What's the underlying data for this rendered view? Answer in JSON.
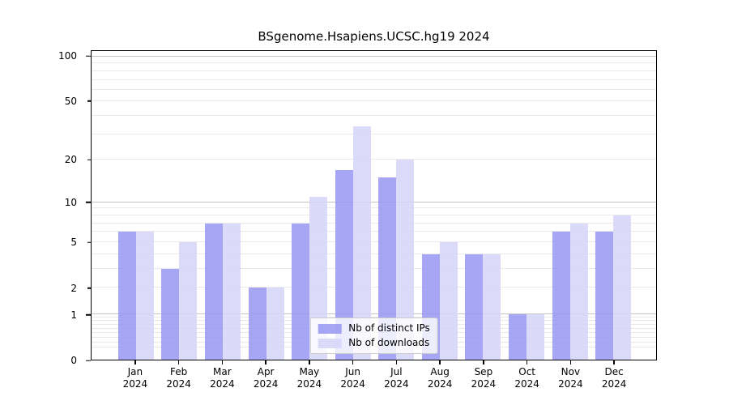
{
  "title": "BSgenome.Hsapiens.UCSC.hg19 2024",
  "colors": {
    "ips_bar": "rgba(150,150,243,0.85)",
    "downloads_bar": "rgba(214,214,248,0.88)",
    "grid_major": "#c4c4c4",
    "grid_minor": "#e9e9e9",
    "axis": "#000000",
    "legend_border": "#cccccc"
  },
  "legend": {
    "items": [
      {
        "label": "Nb of distinct IPs",
        "series": "ips"
      },
      {
        "label": "Nb of downloads",
        "series": "downloads"
      }
    ]
  },
  "y_axis": {
    "tick_values": [
      0,
      1,
      2,
      5,
      10,
      20,
      50,
      100
    ],
    "tick_labels": [
      "0",
      "1",
      "2",
      "5",
      "10",
      "20",
      "50",
      "100"
    ],
    "major_values": [
      0,
      1,
      10,
      100
    ],
    "minor_grid_values": [
      0.2,
      0.3,
      0.4,
      0.5,
      0.6,
      0.7,
      0.8,
      0.9,
      2,
      3,
      4,
      5,
      6,
      7,
      8,
      9,
      20,
      30,
      40,
      50,
      60,
      70,
      80,
      90
    ],
    "major_grid_values": [
      1,
      10,
      100
    ],
    "scale": "log10(value+1)",
    "top_log_value": 2.042
  },
  "x_axis": {
    "months": [
      "Jan",
      "Feb",
      "Mar",
      "Apr",
      "May",
      "Jun",
      "Jul",
      "Aug",
      "Sep",
      "Oct",
      "Nov",
      "Dec"
    ],
    "year": "2024"
  },
  "chart_data": {
    "type": "bar",
    "title": "BSgenome.Hsapiens.UCSC.hg19 2024",
    "categories": [
      "Jan 2024",
      "Feb 2024",
      "Mar 2024",
      "Apr 2024",
      "May 2024",
      "Jun 2024",
      "Jul 2024",
      "Aug 2024",
      "Sep 2024",
      "Oct 2024",
      "Nov 2024",
      "Dec 2024"
    ],
    "series": [
      {
        "name": "Nb of distinct IPs",
        "values": [
          6,
          3,
          7,
          2,
          7,
          17,
          15,
          4,
          4,
          1,
          6,
          6
        ]
      },
      {
        "name": "Nb of downloads",
        "values": [
          6,
          5,
          7,
          2,
          11,
          34,
          20,
          5,
          4,
          1,
          7,
          8
        ]
      }
    ],
    "xlabel": "",
    "ylabel": "",
    "yscale": "log1p",
    "y_ticks": [
      0,
      1,
      2,
      5,
      10,
      20,
      50,
      100
    ],
    "ylim": [
      0,
      110
    ],
    "grid": true,
    "legend_position": "lower center"
  }
}
